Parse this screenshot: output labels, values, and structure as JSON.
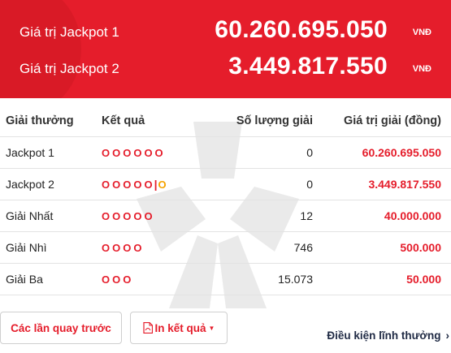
{
  "jackpots": [
    {
      "label": "Giá trị Jackpot 1",
      "value": "60.260.695.050",
      "unit": "VNĐ"
    },
    {
      "label": "Giá trị Jackpot 2",
      "value": "3.449.817.550",
      "unit": "VNĐ"
    }
  ],
  "table": {
    "headers": [
      "Giải thưởng",
      "Kết quả",
      "Số lượng giải",
      "Giá trị giải (đồng)"
    ],
    "rows": [
      {
        "name": "Jackpot 1",
        "balls": "OOOOOO",
        "count": "0",
        "prize": "60.260.695.050"
      },
      {
        "name": "Jackpot 2",
        "balls": "OOOOO",
        "separator": "|",
        "bonus": "O",
        "count": "0",
        "prize": "3.449.817.550"
      },
      {
        "name": "Giải Nhất",
        "balls": "OOOOO",
        "count": "12",
        "prize": "40.000.000"
      },
      {
        "name": "Giải Nhì",
        "balls": "OOOO",
        "count": "746",
        "prize": "500.000"
      },
      {
        "name": "Giải Ba",
        "balls": "OOO",
        "count": "15.073",
        "prize": "50.000"
      }
    ]
  },
  "buttons": {
    "previous_draws": "Các lần quay trước",
    "print_results": "In kết quả"
  },
  "footer": {
    "conditions_link": "Điều kiện lĩnh thưởng"
  },
  "colors": {
    "brand_red": "#e51d2b",
    "bonus_orange": "#f5a300",
    "link_navy": "#1f2a44"
  }
}
